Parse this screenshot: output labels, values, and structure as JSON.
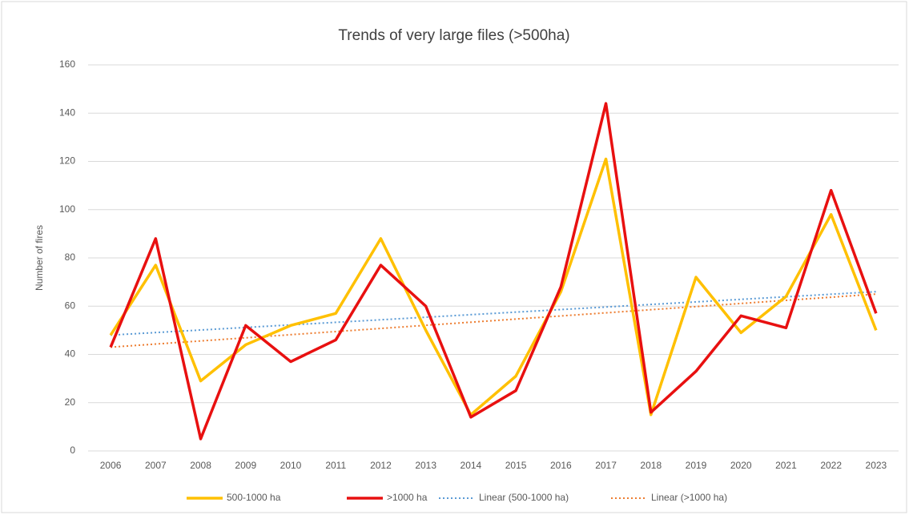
{
  "chart_data": {
    "type": "line",
    "title": "Trends of very large files (>500ha)",
    "y_label": "Number of fires",
    "categories": [
      "2006",
      "2007",
      "2008",
      "2009",
      "2010",
      "2011",
      "2012",
      "2013",
      "2014",
      "2015",
      "2016",
      "2017",
      "2018",
      "2019",
      "2020",
      "2021",
      "2022",
      "2023"
    ],
    "series": [
      {
        "name": "500-1000 ha",
        "color": "#ffc000",
        "values": [
          48,
          77,
          29,
          44,
          52,
          57,
          88,
          50,
          15,
          31,
          66,
          121,
          15,
          72,
          49,
          64,
          98,
          50
        ]
      },
      {
        "name": ">1000 ha",
        "color": "#e81010",
        "values": [
          43,
          88,
          5,
          52,
          37,
          46,
          77,
          60,
          14,
          25,
          68,
          144,
          16,
          33,
          56,
          51,
          108,
          57
        ]
      }
    ],
    "trendlines": [
      {
        "name": "Linear (500-1000 ha)",
        "color": "#5b9bd5",
        "values": [
          48,
          66
        ]
      },
      {
        "name": "Linear (>1000 ha)",
        "color": "#ed7d31",
        "values": [
          43,
          65
        ]
      }
    ],
    "ylim": [
      0,
      160
    ],
    "yticks": [
      0,
      20,
      40,
      60,
      80,
      100,
      120,
      140,
      160
    ],
    "grid": true
  }
}
